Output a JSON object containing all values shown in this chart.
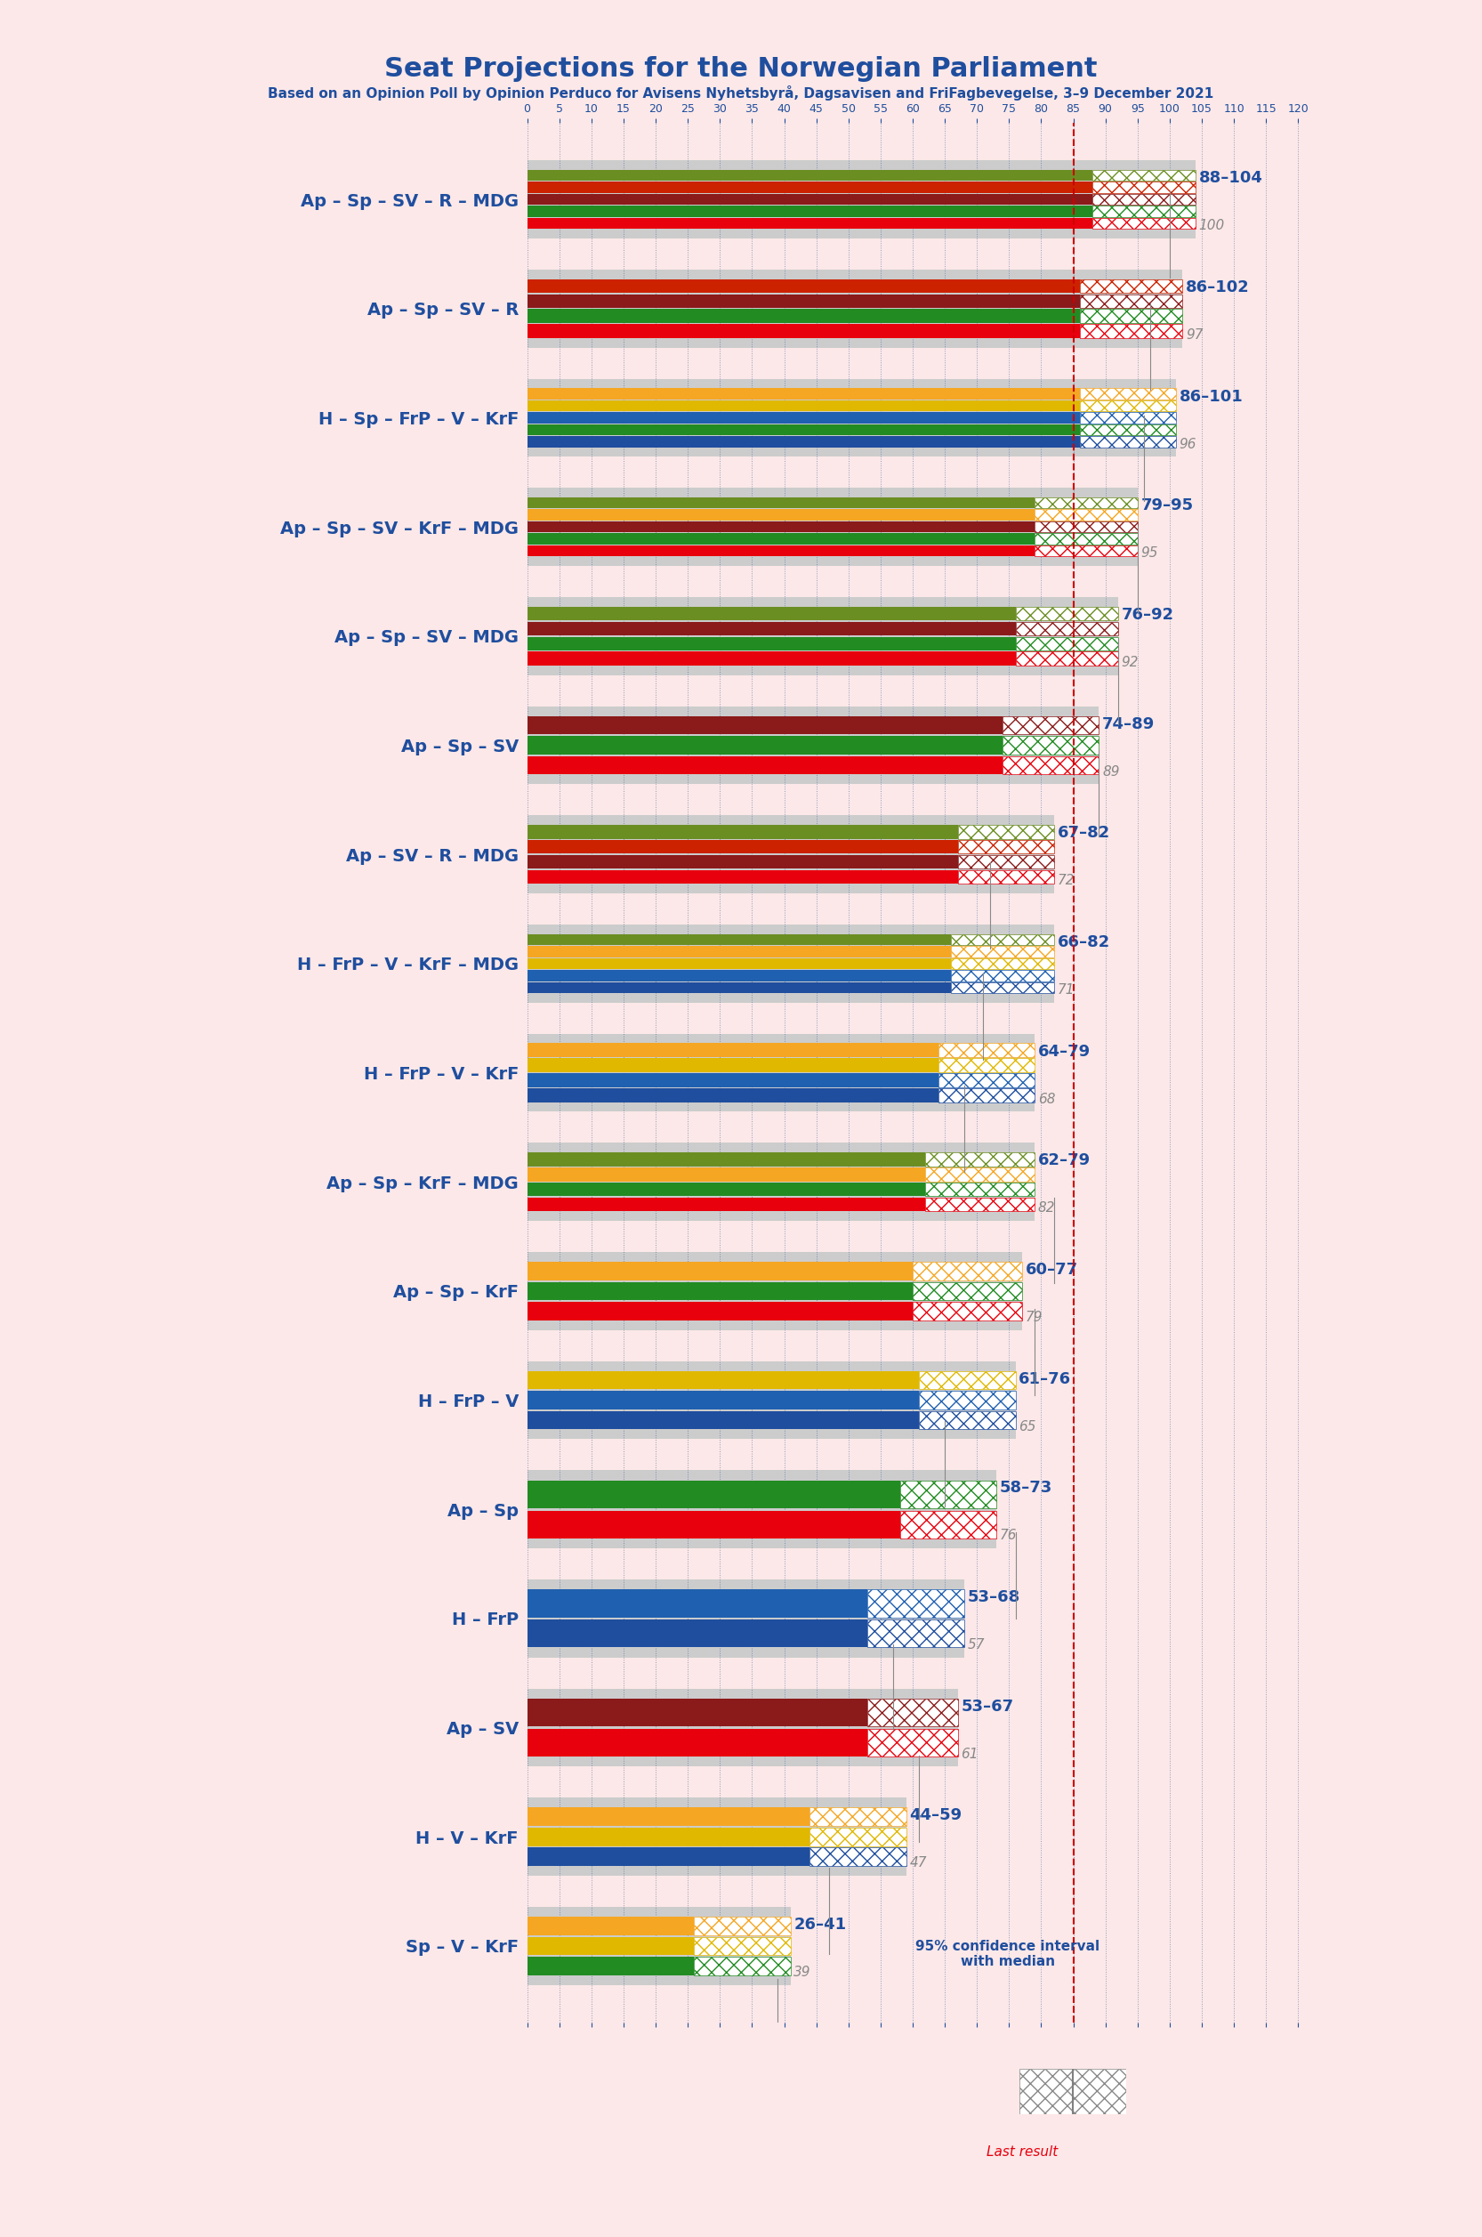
{
  "title": "Seat Projections for the Norwegian Parliament",
  "subtitle": "Based on an Opinion Poll by Opinion Perduco for Avisens Nyhetsbyrå, Dagsavisen and FriFagbevegelse, 3–9 December 2021",
  "background_color": "#fce8e8",
  "coalitions": [
    {
      "name": "Ap – Sp – SV – R – MDG",
      "ci_low": 88,
      "ci_high": 104,
      "median": 100,
      "parties": [
        "Ap",
        "Sp",
        "SV",
        "R",
        "MDG"
      ]
    },
    {
      "name": "Ap – Sp – SV – R",
      "ci_low": 86,
      "ci_high": 102,
      "median": 97,
      "parties": [
        "Ap",
        "Sp",
        "SV",
        "R"
      ]
    },
    {
      "name": "H – Sp – FrP – V – KrF",
      "ci_low": 86,
      "ci_high": 101,
      "median": 96,
      "parties": [
        "H",
        "Sp",
        "FrP",
        "V",
        "KrF"
      ]
    },
    {
      "name": "Ap – Sp – SV – KrF – MDG",
      "ci_low": 79,
      "ci_high": 95,
      "median": 95,
      "parties": [
        "Ap",
        "Sp",
        "SV",
        "KrF",
        "MDG"
      ]
    },
    {
      "name": "Ap – Sp – SV – MDG",
      "ci_low": 76,
      "ci_high": 92,
      "median": 92,
      "parties": [
        "Ap",
        "Sp",
        "SV",
        "MDG"
      ]
    },
    {
      "name": "Ap – Sp – SV",
      "ci_low": 74,
      "ci_high": 89,
      "median": 89,
      "parties": [
        "Ap",
        "Sp",
        "SV"
      ]
    },
    {
      "name": "Ap – SV – R – MDG",
      "ci_low": 67,
      "ci_high": 82,
      "median": 72,
      "parties": [
        "Ap",
        "SV",
        "R",
        "MDG"
      ]
    },
    {
      "name": "H – FrP – V – KrF – MDG",
      "ci_low": 66,
      "ci_high": 82,
      "median": 71,
      "parties": [
        "H",
        "FrP",
        "V",
        "KrF",
        "MDG"
      ]
    },
    {
      "name": "H – FrP – V – KrF",
      "ci_low": 64,
      "ci_high": 79,
      "median": 68,
      "parties": [
        "H",
        "FrP",
        "V",
        "KrF"
      ]
    },
    {
      "name": "Ap – Sp – KrF – MDG",
      "ci_low": 62,
      "ci_high": 79,
      "median": 82,
      "parties": [
        "Ap",
        "Sp",
        "KrF",
        "MDG"
      ]
    },
    {
      "name": "Ap – Sp – KrF",
      "ci_low": 60,
      "ci_high": 77,
      "median": 79,
      "parties": [
        "Ap",
        "Sp",
        "KrF"
      ]
    },
    {
      "name": "H – FrP – V",
      "ci_low": 61,
      "ci_high": 76,
      "median": 65,
      "parties": [
        "H",
        "FrP",
        "V"
      ]
    },
    {
      "name": "Ap – Sp",
      "ci_low": 58,
      "ci_high": 73,
      "median": 76,
      "parties": [
        "Ap",
        "Sp"
      ]
    },
    {
      "name": "H – FrP",
      "ci_low": 53,
      "ci_high": 68,
      "median": 57,
      "parties": [
        "H",
        "FrP"
      ]
    },
    {
      "name": "Ap – SV",
      "ci_low": 53,
      "ci_high": 67,
      "median": 61,
      "parties": [
        "Ap",
        "SV"
      ],
      "underline": true
    },
    {
      "name": "H – V – KrF",
      "ci_low": 44,
      "ci_high": 59,
      "median": 47,
      "parties": [
        "H",
        "V",
        "KrF"
      ]
    },
    {
      "name": "Sp – V – KrF",
      "ci_low": 26,
      "ci_high": 41,
      "median": 39,
      "parties": [
        "Sp",
        "V",
        "KrF"
      ]
    }
  ],
  "party_colors": {
    "Ap": "#E8000D",
    "Sp": "#2CA02C",
    "SV": "#8B0000",
    "R": "#CC0000",
    "MDG": "#6B8E23",
    "H": "#1F4E9E",
    "FrP": "#1F4E9E",
    "V": "#E0B800",
    "KrF": "#F5A623"
  },
  "party_colors_display": {
    "Ap": "#E8000D",
    "Sp": "#228B22",
    "SV": "#8B1A1A",
    "R": "#CC2200",
    "MDG": "#6B8E23",
    "H": "#1F4E9E",
    "FrP": "#2060B0",
    "V": "#E0B800",
    "KrF": "#F5A623"
  },
  "majority_line": 85,
  "x_min": 0,
  "x_max": 120,
  "bar_height": 0.55,
  "axis_color": "#1F4E9E",
  "ci_range_color": "#cccccc",
  "legend_rect_color": "#1F4E9E"
}
